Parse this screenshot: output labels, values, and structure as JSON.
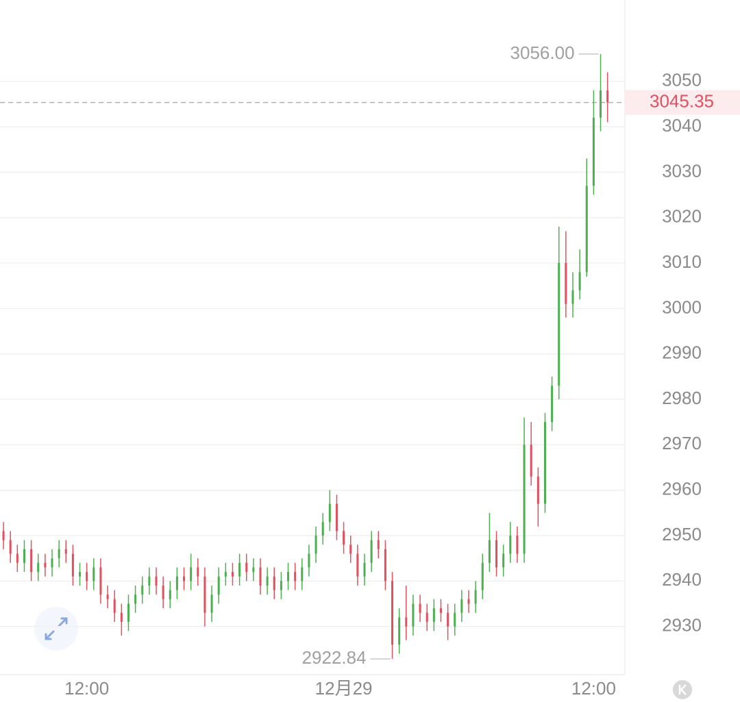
{
  "chart_data": {
    "type": "candlestick",
    "categories": [
      null,
      null,
      null,
      null,
      null,
      null,
      null,
      null,
      null,
      null,
      null,
      null,
      "12:00",
      null,
      null,
      null,
      null,
      null,
      null,
      null,
      null,
      null,
      null,
      null,
      null,
      null,
      null,
      null,
      null,
      null,
      null,
      null,
      null,
      null,
      null,
      null,
      null,
      null,
      null,
      null,
      null,
      null,
      null,
      null,
      null,
      null,
      null,
      null,
      null,
      "12月29",
      null,
      null,
      null,
      null,
      null,
      null,
      null,
      null,
      null,
      null,
      null,
      null,
      null,
      null,
      null,
      null,
      null,
      null,
      null,
      null,
      null,
      null,
      null,
      null,
      null,
      null,
      null,
      null,
      null,
      null,
      null,
      null,
      null,
      null,
      null,
      "12:00",
      null,
      null
    ],
    "open": [
      2951,
      2949,
      2946,
      2944,
      2947,
      2942,
      2944,
      2943,
      2945,
      2947,
      2946,
      2941,
      2942,
      2940,
      2943,
      2937,
      2936,
      2933,
      2931,
      2935,
      2937,
      2939,
      2941,
      2939,
      2936,
      2938,
      2941,
      2940,
      2943,
      2941,
      2933,
      2937,
      2941,
      2942,
      2941,
      2944,
      2942,
      2943,
      2939,
      2941,
      2938,
      2940,
      2942,
      2940,
      2943,
      2946,
      2950,
      2953,
      2957,
      2951,
      2948,
      2946,
      2941,
      2944,
      2949,
      2947,
      2940,
      2926,
      2932,
      2930,
      2935,
      2933,
      2931,
      2934,
      2933,
      2930,
      2933,
      2936,
      2935,
      2938,
      2944,
      2949,
      2943,
      2946,
      2950,
      2946,
      2970,
      2963,
      2957,
      2975,
      2983,
      3010,
      3001,
      3004,
      3008,
      3027,
      3042,
      3048
    ],
    "high": [
      2953,
      2951,
      2948,
      2949,
      2949,
      2946,
      2946,
      2947,
      2949,
      2949,
      2948,
      2944,
      2944,
      2945,
      2945,
      2939,
      2938,
      2935,
      2937,
      2939,
      2941,
      2943,
      2943,
      2941,
      2940,
      2943,
      2943,
      2946,
      2945,
      2943,
      2939,
      2943,
      2944,
      2944,
      2946,
      2946,
      2945,
      2945,
      2943,
      2943,
      2942,
      2944,
      2944,
      2945,
      2948,
      2952,
      2955,
      2960,
      2959,
      2953,
      2950,
      2948,
      2946,
      2951,
      2951,
      2949,
      2942,
      2934,
      2939,
      2937,
      2937,
      2935,
      2936,
      2936,
      2935,
      2935,
      2938,
      2938,
      2940,
      2946,
      2955,
      2951,
      2948,
      2953,
      2952,
      2976,
      2975,
      2965,
      2977,
      2985,
      3018,
      3017,
      3008,
      3013,
      3033,
      3048,
      3056,
      3052
    ],
    "low": [
      2947,
      2944,
      2942,
      2942,
      2940,
      2940,
      2941,
      2941,
      2943,
      2944,
      2939,
      2939,
      2938,
      2938,
      2935,
      2934,
      2931,
      2928,
      2929,
      2933,
      2935,
      2937,
      2937,
      2934,
      2934,
      2936,
      2938,
      2938,
      2939,
      2930,
      2931,
      2935,
      2939,
      2939,
      2939,
      2940,
      2940,
      2937,
      2937,
      2936,
      2936,
      2938,
      2938,
      2938,
      2941,
      2944,
      2948,
      2951,
      2949,
      2946,
      2944,
      2939,
      2939,
      2942,
      2945,
      2938,
      2922.84,
      2924,
      2927,
      2928,
      2931,
      2929,
      2929,
      2931,
      2927,
      2928,
      2931,
      2933,
      2933,
      2936,
      2942,
      2941,
      2941,
      2944,
      2944,
      2944,
      2961,
      2952,
      2955,
      2973,
      2980,
      2998,
      2998,
      3002,
      3007,
      3025,
      3039,
      3041
    ],
    "close": [
      2949,
      2946,
      2944,
      2947,
      2942,
      2944,
      2943,
      2945,
      2947,
      2946,
      2941,
      2942,
      2940,
      2943,
      2937,
      2936,
      2933,
      2931,
      2935,
      2937,
      2939,
      2941,
      2939,
      2936,
      2938,
      2941,
      2940,
      2943,
      2941,
      2933,
      2937,
      2941,
      2942,
      2941,
      2944,
      2942,
      2943,
      2939,
      2941,
      2938,
      2940,
      2942,
      2940,
      2943,
      2946,
      2950,
      2953,
      2957,
      2951,
      2948,
      2946,
      2941,
      2944,
      2949,
      2947,
      2940,
      2926,
      2932,
      2930,
      2935,
      2933,
      2931,
      2934,
      2933,
      2930,
      2933,
      2936,
      2935,
      2938,
      2944,
      2949,
      2943,
      2946,
      2950,
      2946,
      2970,
      2963,
      2957,
      2975,
      2983,
      3010,
      3001,
      3004,
      3008,
      3027,
      3042,
      3048,
      3045.35
    ],
    "up_color": "#4cb050",
    "down_color": "#e0505f",
    "xlim": [
      -0.5,
      89.5
    ],
    "ylim": [
      2919.4,
      3067.9
    ],
    "yticks": [
      2930,
      2940,
      2950,
      2960,
      2970,
      2980,
      2990,
      3000,
      3010,
      3020,
      3030,
      3040,
      3050
    ],
    "grid": true,
    "high_label": {
      "value": 3056,
      "label": "3056.00"
    },
    "low_label": {
      "value": 2922.84,
      "label": "2922.84"
    },
    "last_price": {
      "value": 3045.35,
      "label": "3045.35"
    }
  }
}
